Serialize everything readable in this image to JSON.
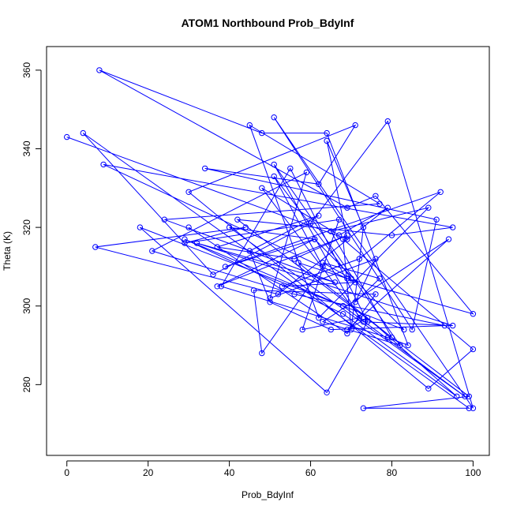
{
  "chart_data": {
    "type": "line",
    "title": "ATOM1 Northbound Prob_BdyInf",
    "xlabel": "Prob_BdyInf",
    "ylabel": "Theta (K)",
    "xlim": [
      -5,
      104
    ],
    "ylim": [
      262,
      366
    ],
    "xticks": [
      0,
      20,
      40,
      60,
      80,
      100
    ],
    "yticks": [
      280,
      300,
      320,
      340,
      360
    ],
    "grid": false,
    "legend": "none",
    "markers": "open-circle",
    "color": "#0000ff",
    "series": [
      {
        "x": [
          0,
          69,
          64,
          73,
          70,
          68,
          100,
          89,
          30,
          71,
          62,
          34,
          91,
          85,
          51,
          100,
          79,
          60,
          36,
          4,
          99,
          73,
          99,
          42,
          80,
          95,
          9,
          71,
          53,
          72,
          92,
          39,
          61,
          83,
          18,
          64,
          74,
          55,
          38,
          79,
          84,
          64,
          48,
          8,
          69,
          76,
          100,
          69,
          57,
          80,
          65,
          89,
          62,
          45,
          77,
          24,
          66,
          32,
          95,
          73,
          48,
          67,
          79,
          52,
          7,
          44,
          29,
          67,
          58,
          72,
          51,
          82,
          63,
          94,
          69,
          74,
          96,
          68,
          29,
          68,
          98,
          40,
          61,
          37,
          69,
          56,
          37,
          62,
          45,
          50,
          65,
          93,
          56,
          21,
          59,
          50,
          76,
          71,
          77,
          63,
          70,
          51,
          63,
          48,
          46,
          76,
          69,
          30
        ],
        "y": [
          343,
          317,
          342,
          320,
          294,
          317,
          289,
          279,
          329,
          346,
          331,
          335,
          322,
          294,
          348,
          274,
          347,
          321,
          308,
          344,
          274,
          274,
          277,
          322,
          318,
          320,
          336,
          306,
          305,
          312,
          329,
          310,
          317,
          294,
          320,
          278,
          296,
          335,
          305,
          292,
          290,
          344,
          344,
          360,
          325,
          328,
          298,
          307,
          311,
          292,
          319,
          325,
          297,
          346,
          326,
          322,
          306,
          316,
          295,
          296,
          330,
          318,
          325,
          303,
          315,
          320,
          316,
          322,
          294,
          297,
          336,
          290,
          296,
          317,
          294,
          297,
          277,
          298,
          317,
          300,
          277,
          320,
          317,
          305,
          318,
          312,
          315,
          323,
          314,
          301,
          294,
          295,
          303,
          314,
          334,
          302,
          312,
          301,
          307,
          311,
          307,
          333,
          310,
          288,
          304,
          303,
          293,
          320
        ]
      }
    ]
  }
}
